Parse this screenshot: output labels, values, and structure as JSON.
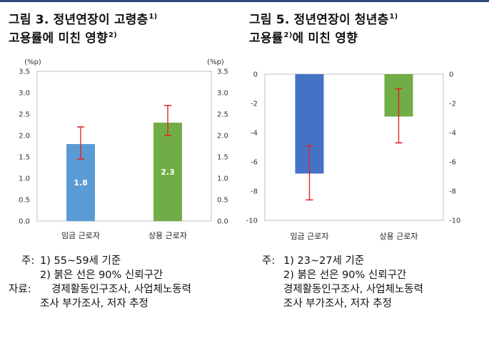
{
  "panels": [
    {
      "title_line1": "그림 3. 정년연장이 고령층",
      "title_line1_sup": "1)",
      "title_line2": "고용률에 미친 영향",
      "title_line2_sup": "2)",
      "notes": {
        "prefix": "주:",
        "note1": "1)  55~59세 기준",
        "note2": "2)  붉은 선은 90% 신뢰구간",
        "source_prefix": "자료:",
        "source1": "경제활동인구조사,   사업체노동력",
        "source2": "조사 부가조사, 저자 추정"
      }
    },
    {
      "title_line1": "그림 5. 정년연장이 청년층",
      "title_line1_sup": "1)",
      "title_line2_pre": "고용률",
      "title_line2_sup": "2)",
      "title_line2_post": "에 미친 영향",
      "notes": {
        "prefix": "주:",
        "note1": "1)  23~27세 기준",
        "note2": "2)  붉은 선은 90% 신뢰구간",
        "source_prefix": "자료:",
        "source1": "경제활동인구조사,   사업체노동력",
        "source2": "조사 부가조사, 저자 추정"
      }
    }
  ],
  "colors": {
    "blue_bar_left": "#5b9bd5",
    "green_bar": "#70ad47",
    "blue_bar_right": "#4472c4",
    "error_bar": "#e32626",
    "axis": "#bfbfbf",
    "header_rule": "#2e4a7d"
  },
  "chart_data": [
    {
      "type": "bar",
      "categories": [
        "임금 근로자",
        "상용 근로자"
      ],
      "values": [
        1.8,
        2.3
      ],
      "data_labels": [
        "1.8",
        "2.3"
      ],
      "ci_low": [
        1.45,
        2.0
      ],
      "ci_high": [
        2.2,
        2.7
      ],
      "ylim": [
        0.0,
        3.5
      ],
      "yticks": [
        "0.0",
        "0.5",
        "1.0",
        "1.5",
        "2.0",
        "2.5",
        "3.0",
        "3.5"
      ],
      "unit_left": "(%p)",
      "unit_right": "(%p)",
      "bar_colors": [
        "#5b9bd5",
        "#70ad47"
      ]
    },
    {
      "type": "bar",
      "categories": [
        "임금 근로자",
        "상용 근로자"
      ],
      "values": [
        -6.8,
        -2.9
      ],
      "ci_low": [
        -8.6,
        -4.7
      ],
      "ci_high": [
        -4.9,
        -1.0
      ],
      "ylim": [
        -10,
        0
      ],
      "yticks": [
        "0",
        "-2",
        "-4",
        "-6",
        "-8",
        "-10"
      ],
      "bar_colors": [
        "#4472c4",
        "#70ad47"
      ]
    }
  ]
}
